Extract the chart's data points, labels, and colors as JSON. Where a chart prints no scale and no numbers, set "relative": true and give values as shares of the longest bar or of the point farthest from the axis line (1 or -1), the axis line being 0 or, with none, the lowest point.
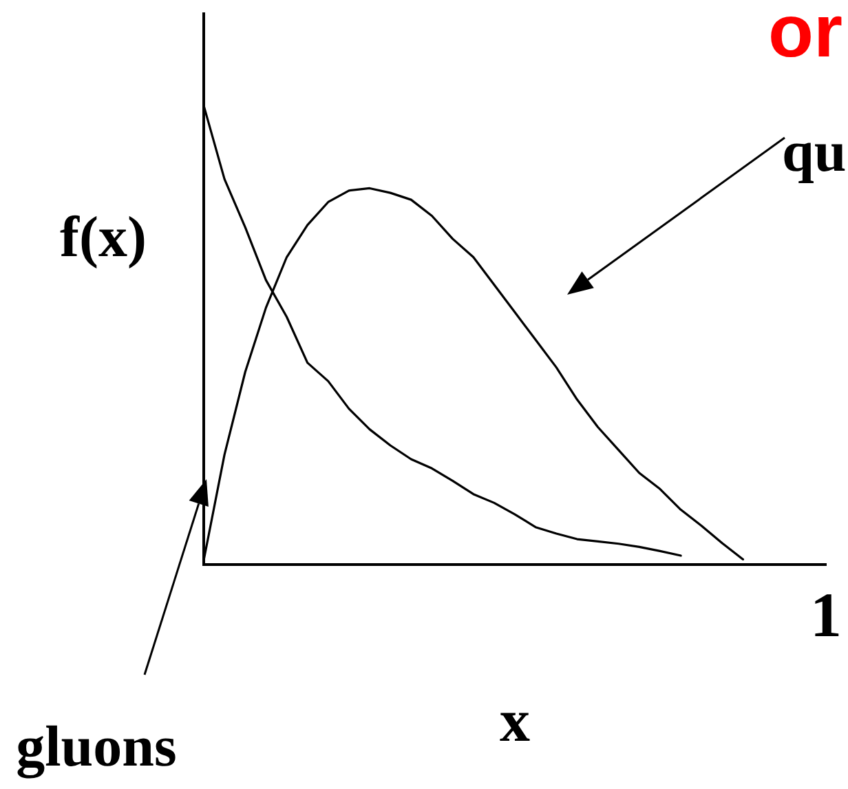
{
  "chart_data": {
    "type": "line",
    "title": "or",
    "xlabel": "x",
    "ylabel": "f(x)",
    "relative": true,
    "annotations": [
      "1"
    ],
    "grid": false,
    "legend": false,
    "marker": "none",
    "line_style": "solid",
    "categories": [
      null,
      null,
      null,
      null,
      null,
      null,
      null,
      null,
      null,
      null,
      null,
      null,
      null,
      null,
      null,
      null,
      null,
      null,
      null,
      null,
      null,
      null,
      null,
      null,
      null,
      null,
      null,
      null,
      null,
      null,
      null
    ],
    "series": [
      {
        "name": "gluons",
        "color": "#000000",
        "values": [
          1,
          0.84,
          0.735,
          0.62,
          0.54,
          0.44,
          0.4,
          0.34,
          0.295,
          0.26,
          0.23,
          0.21,
          0.183,
          0.154,
          0.135,
          0.11,
          0.082,
          0.068,
          0.056,
          0.051,
          0.046,
          0.039,
          0.03,
          0.02,
          null,
          null,
          null,
          null,
          null,
          null,
          null
        ]
      },
      {
        "name": "qu",
        "color": "#000000",
        "values": [
          0.01,
          0.24,
          0.42,
          0.56,
          0.67,
          0.74,
          0.79,
          0.815,
          0.82,
          0.81,
          0.795,
          0.76,
          0.71,
          0.67,
          0.61,
          0.55,
          0.49,
          0.43,
          0.36,
          0.3,
          0.25,
          0.2,
          0.165,
          0.12,
          0.085,
          0.047,
          0.012,
          null,
          null,
          null,
          null
        ]
      }
    ]
  }
}
